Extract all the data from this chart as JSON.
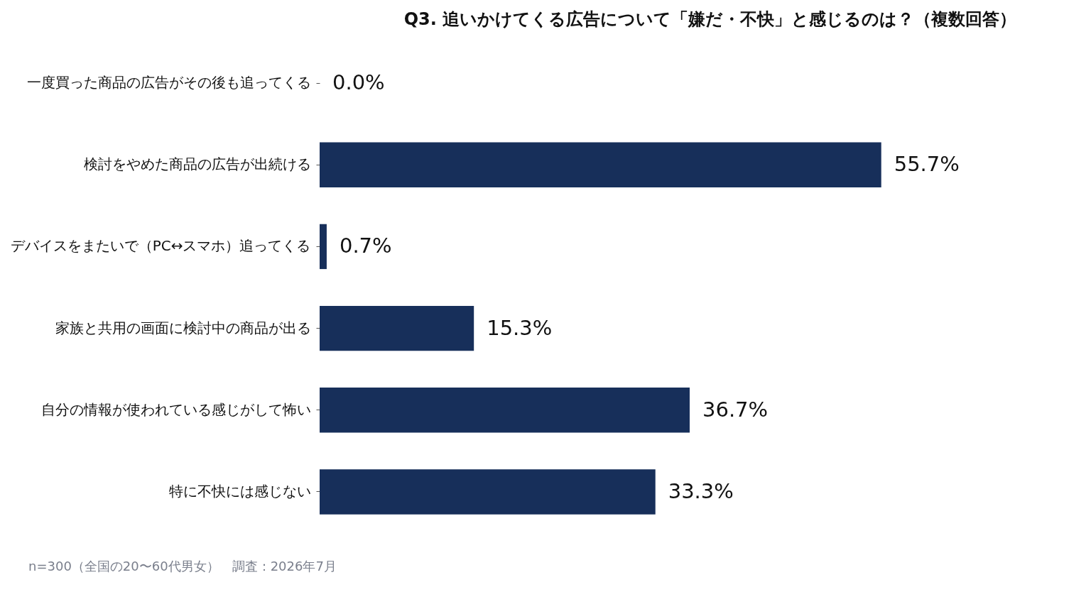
{
  "chart_data": {
    "type": "bar",
    "orientation": "horizontal",
    "title": "Q3. 追いかけてくる広告について「嫌だ・不快」と感じるのは？（複数回答）",
    "categories": [
      "一度買った商品の広告がその後も追ってくる",
      "検討をやめた商品の広告が出続ける",
      "デバイスをまたいで（PC↔スマホ）追ってくる",
      "家族と共用の画面に検討中の商品が出る",
      "自分の情報が使われている感じがして怖い",
      "特に不快には感じない"
    ],
    "values": [
      0.0,
      55.7,
      0.7,
      15.3,
      36.7,
      33.3
    ],
    "value_labels": [
      "0.0%",
      "55.7%",
      "0.7%",
      "15.3%",
      "36.7%",
      "33.3%"
    ],
    "color": "#172f5a",
    "annotations": [
      "n=300（全国の20〜60代男女）　調査：2026年7月"
    ]
  }
}
